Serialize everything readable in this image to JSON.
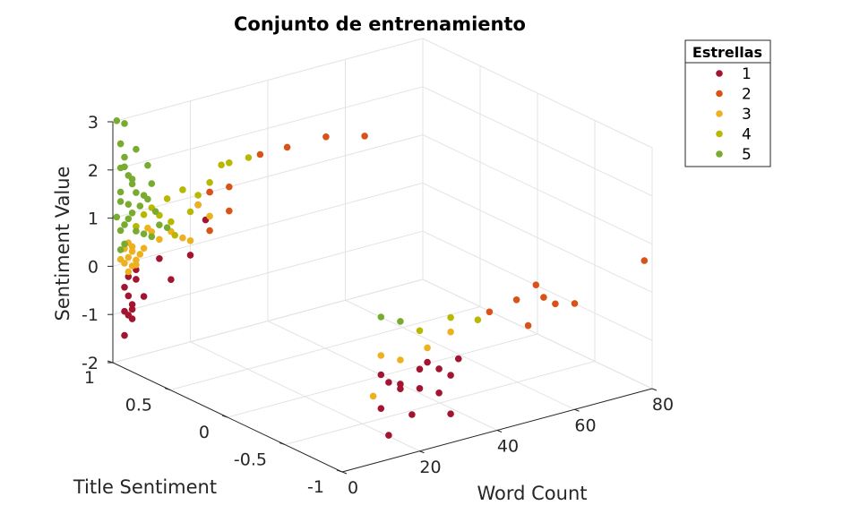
{
  "chart_data": {
    "type": "scatter",
    "title": "Conjunto de entrenamiento",
    "xlabel": "Word Count",
    "ylabel": "Title Sentiment",
    "zlabel": "Sentiment Value",
    "xlim": [
      0,
      80
    ],
    "ylim": [
      -1,
      1
    ],
    "zlim": [
      -2,
      3
    ],
    "xticks": [
      "0",
      "20",
      "40",
      "60",
      "80"
    ],
    "yticks": [
      "-1",
      "-0.5",
      "0",
      "0.5",
      "1"
    ],
    "zticks": [
      "-2",
      "-1",
      "0",
      "1",
      "2",
      "3"
    ],
    "grid": true,
    "legend": {
      "title": "Estrellas",
      "position": "top-right"
    },
    "series": [
      {
        "name": "1",
        "color": "#a2142f",
        "points": [
          [
            3,
            1,
            -1.5
          ],
          [
            3,
            1,
            -0.5
          ],
          [
            3,
            1,
            -1.0
          ],
          [
            4,
            1,
            -0.7
          ],
          [
            5,
            1,
            -1.0
          ],
          [
            5,
            1,
            -1.2
          ],
          [
            4,
            1,
            -0.3
          ],
          [
            6,
            1,
            -0.2
          ],
          [
            12,
            1,
            -0.1
          ],
          [
            5,
            1,
            -0.9
          ],
          [
            4,
            1,
            -1.1
          ],
          [
            20,
            1,
            -0.2
          ],
          [
            15,
            1,
            -0.6
          ],
          [
            25,
            1,
            1.0
          ],
          [
            6,
            1,
            -0.4
          ],
          [
            8,
            1,
            -0.8
          ],
          [
            18,
            0.8,
            0.8
          ],
          [
            22,
            1,
            0.8
          ],
          [
            10,
            -1,
            -0.2
          ],
          [
            12,
            -1,
            -0.4
          ],
          [
            15,
            -1,
            -0.6
          ],
          [
            10,
            -1,
            -0.9
          ],
          [
            18,
            -1,
            -1.2
          ],
          [
            20,
            -1,
            -0.3
          ],
          [
            25,
            -1,
            -0.4
          ],
          [
            28,
            -1,
            -0.6
          ],
          [
            22,
            -1,
            -0.2
          ],
          [
            15,
            -1,
            -0.5
          ],
          [
            30,
            -1,
            -0.3
          ],
          [
            12,
            -1,
            -1.5
          ],
          [
            28,
            -1,
            -1.4
          ],
          [
            25,
            -1,
            -0.9
          ],
          [
            20,
            -1,
            -0.7
          ]
        ]
      },
      {
        "name": "2",
        "color": "#d95319",
        "points": [
          [
            30,
            1,
            1.0
          ],
          [
            38,
            1,
            1.5
          ],
          [
            45,
            1,
            1.5
          ],
          [
            55,
            1,
            1.5
          ],
          [
            65,
            1,
            1.3
          ],
          [
            25,
            1,
            1.0
          ],
          [
            30,
            1,
            0.5
          ],
          [
            25,
            1,
            0.2
          ],
          [
            38,
            -1,
            0.5
          ],
          [
            45,
            -1,
            0.6
          ],
          [
            50,
            -1,
            0.8
          ],
          [
            52,
            -1,
            0.5
          ],
          [
            55,
            -1,
            0.3
          ],
          [
            60,
            -1,
            0.2
          ],
          [
            48,
            -1,
            0.0
          ],
          [
            78,
            -1,
            0.7
          ]
        ]
      },
      {
        "name": "3",
        "color": "#edb120",
        "points": [
          [
            2,
            1,
            0.1
          ],
          [
            3,
            1,
            0.0
          ],
          [
            4,
            1,
            0.1
          ],
          [
            5,
            1,
            0.2
          ],
          [
            6,
            1,
            0.0
          ],
          [
            4,
            1,
            -0.2
          ],
          [
            5,
            1,
            0.3
          ],
          [
            7,
            1,
            0.1
          ],
          [
            8,
            1,
            0.2
          ],
          [
            3,
            1,
            0.3
          ],
          [
            6,
            1,
            -0.1
          ],
          [
            10,
            1,
            0.5
          ],
          [
            12,
            1,
            0.3
          ],
          [
            15,
            1,
            0.4
          ],
          [
            18,
            1,
            0.2
          ],
          [
            20,
            1,
            0.1
          ],
          [
            22,
            1,
            0.8
          ],
          [
            25,
            1,
            0.5
          ],
          [
            2,
            1,
            2.5
          ],
          [
            4,
            1,
            0.4
          ],
          [
            5,
            1,
            -0.1
          ],
          [
            9,
            1,
            0.6
          ],
          [
            10,
            -1,
            0.2
          ],
          [
            15,
            -1,
            0.0
          ],
          [
            22,
            -1,
            0.1
          ],
          [
            28,
            -1,
            0.3
          ],
          [
            8,
            -1,
            -0.6
          ]
        ]
      },
      {
        "name": "4",
        "color": "#b8b800",
        "points": [
          [
            18,
            1,
            1.2
          ],
          [
            22,
            1,
            1.0
          ],
          [
            25,
            1,
            1.2
          ],
          [
            28,
            1,
            1.5
          ],
          [
            30,
            1,
            1.5
          ],
          [
            35,
            1,
            1.5
          ],
          [
            12,
            1,
            0.8
          ],
          [
            15,
            1,
            0.6
          ],
          [
            20,
            1,
            0.7
          ],
          [
            10,
            1,
            1.0
          ],
          [
            8,
            1,
            0.9
          ],
          [
            14,
            1,
            1.1
          ],
          [
            16,
            1,
            0.3
          ],
          [
            6,
            1,
            0.7
          ],
          [
            20,
            -1,
            0.5
          ],
          [
            28,
            -1,
            0.6
          ],
          [
            35,
            -1,
            0.4
          ]
        ]
      },
      {
        "name": "5",
        "color": "#77ac30",
        "points": [
          [
            1,
            1,
            3.0
          ],
          [
            3,
            1,
            2.9
          ],
          [
            2,
            1,
            2.5
          ],
          [
            3,
            1,
            2.2
          ],
          [
            3,
            1,
            2.0
          ],
          [
            4,
            1,
            1.8
          ],
          [
            5,
            1,
            1.6
          ],
          [
            2,
            1,
            1.5
          ],
          [
            6,
            1,
            1.4
          ],
          [
            8,
            1,
            1.3
          ],
          [
            9,
            1,
            1.2
          ],
          [
            10,
            1,
            1.5
          ],
          [
            7,
            1,
            1.1
          ],
          [
            5,
            1,
            1.0
          ],
          [
            4,
            1,
            0.9
          ],
          [
            3,
            1,
            0.8
          ],
          [
            2,
            1,
            0.7
          ],
          [
            6,
            1,
            0.6
          ],
          [
            8,
            1,
            0.5
          ],
          [
            10,
            1,
            0.4
          ],
          [
            12,
            1,
            0.6
          ],
          [
            14,
            1,
            0.5
          ],
          [
            3,
            1,
            0.4
          ],
          [
            2,
            1,
            0.3
          ],
          [
            4,
            1,
            1.2
          ],
          [
            2,
            1,
            2.0
          ],
          [
            6,
            1,
            2.3
          ],
          [
            9,
            1,
            1.9
          ],
          [
            11,
            1,
            0.9
          ],
          [
            5,
            1,
            1.7
          ],
          [
            1,
            1,
            1.0
          ],
          [
            2,
            1,
            1.3
          ],
          [
            10,
            -1,
            1.0
          ],
          [
            15,
            -1,
            0.8
          ]
        ]
      }
    ]
  }
}
